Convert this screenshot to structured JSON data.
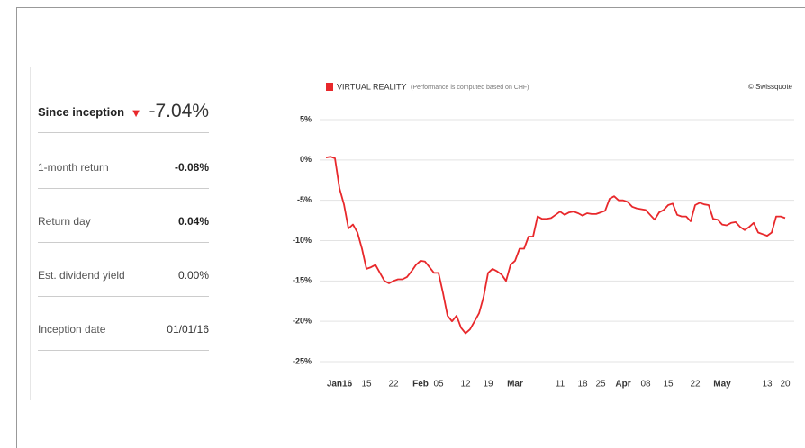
{
  "summary": {
    "label": "Since inception",
    "value": "-7.04%"
  },
  "rows": [
    [
      "1-month return",
      "-0.08%"
    ],
    [
      "Return day",
      "0.04%"
    ],
    [
      "Est. dividend yield",
      "0.00%"
    ],
    [
      "Inception date",
      "01/01/16"
    ]
  ],
  "chart_data": {
    "type": "line",
    "subtitle": "(Performance is computed based on CHF)",
    "credit": "© Swissquote",
    "categories": [
      null,
      null,
      null,
      "Jan16",
      null,
      null,
      null,
      null,
      null,
      "15",
      null,
      null,
      null,
      null,
      null,
      "22",
      null,
      null,
      null,
      null,
      null,
      "Feb",
      null,
      null,
      null,
      "05",
      null,
      null,
      null,
      null,
      null,
      "12",
      null,
      null,
      null,
      null,
      "19",
      null,
      null,
      null,
      null,
      null,
      "Mar",
      null,
      null,
      null,
      null,
      null,
      null,
      null,
      null,
      null,
      "11",
      null,
      null,
      null,
      null,
      "18",
      null,
      null,
      null,
      "25",
      null,
      null,
      null,
      null,
      "Apr",
      null,
      null,
      null,
      null,
      "08",
      null,
      null,
      null,
      null,
      "15",
      null,
      null,
      null,
      null,
      null,
      "22",
      null,
      null,
      null,
      null,
      null,
      "May",
      null,
      null,
      null,
      null,
      null,
      null,
      null,
      null,
      null,
      "13",
      null,
      null,
      null,
      "20"
    ],
    "series": [
      {
        "name": "VIRTUAL REALITY",
        "color": "#e8282b",
        "values": [
          0.3,
          0.4,
          0.2,
          -3.5,
          -5.5,
          -8.5,
          -8,
          -9,
          -11,
          -13.5,
          -13.3,
          -13,
          -14,
          -15,
          -15.3,
          -15,
          -14.8,
          -14.8,
          -14.5,
          -13.8,
          -13,
          -12.5,
          -12.6,
          -13.3,
          -14,
          -14,
          -16.5,
          -19.3,
          -20,
          -19.3,
          -20.8,
          -21.5,
          -21,
          -20,
          -19,
          -17,
          -14,
          -13.5,
          -13.8,
          -14.2,
          -15,
          -13,
          -12.5,
          -11,
          -11,
          -9.5,
          -9.5,
          -7,
          -7.3,
          -7.3,
          -7.2,
          -6.8,
          -6.4,
          -6.8,
          -6.5,
          -6.4,
          -6.6,
          -6.9,
          -6.6,
          -6.7,
          -6.7,
          -6.5,
          -6.3,
          -4.8,
          -4.5,
          -5,
          -5,
          -5.2,
          -5.8,
          -6,
          -6.1,
          -6.2,
          -6.8,
          -7.4,
          -6.5,
          -6.2,
          -5.6,
          -5.4,
          -6.8,
          -7,
          -7,
          -7.6,
          -5.6,
          -5.3,
          -5.5,
          -5.6,
          -7.3,
          -7.4,
          -8,
          -8.1,
          -7.8,
          -7.7,
          -8.3,
          -8.7,
          -8.3,
          -7.8,
          -9,
          -9.2,
          -9.4,
          -9,
          -7,
          -7,
          -7.2
        ]
      }
    ],
    "ylim": [
      -25,
      5
    ],
    "yticks": [
      {
        "value": 5,
        "label": "5%"
      },
      {
        "value": 0,
        "label": "0%"
      },
      {
        "value": -5,
        "label": "-5%"
      },
      {
        "value": -10,
        "label": "-10%"
      },
      {
        "value": -15,
        "label": "-15%"
      },
      {
        "value": -20,
        "label": "-20%"
      },
      {
        "value": -25,
        "label": "-25%"
      }
    ],
    "grid": true
  }
}
